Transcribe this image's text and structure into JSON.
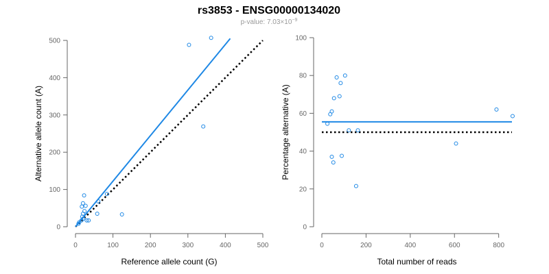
{
  "figure": {
    "title": "rs3853 - ENSG00000134020",
    "subtitle_prefix": "p-value: 7.03×10",
    "subtitle_exponent": "−9"
  },
  "colors": {
    "accent": "#1E88E5",
    "reference_line": "#000000",
    "axis": "#666666"
  },
  "chart_data": [
    {
      "type": "scatter",
      "title": "",
      "xlabel": "Reference allele count (G)",
      "ylabel": "Alternative allele count (A)",
      "xlim": [
        0,
        500
      ],
      "ylim": [
        0,
        500
      ],
      "x_ticks": [
        "0",
        "100",
        "200",
        "300",
        "400",
        "500"
      ],
      "y_ticks": [
        "0",
        "100",
        "200",
        "300",
        "400",
        "500"
      ],
      "grid": false,
      "points": [
        {
          "x": 303,
          "y": 488
        },
        {
          "x": 362,
          "y": 507
        },
        {
          "x": 341,
          "y": 269
        },
        {
          "x": 124,
          "y": 33
        },
        {
          "x": 84,
          "y": 88
        },
        {
          "x": 61,
          "y": 68
        },
        {
          "x": 58,
          "y": 35
        },
        {
          "x": 23,
          "y": 84
        },
        {
          "x": 27,
          "y": 56
        },
        {
          "x": 20,
          "y": 63
        },
        {
          "x": 17,
          "y": 54
        },
        {
          "x": 24,
          "y": 42
        },
        {
          "x": 20,
          "y": 35
        },
        {
          "x": 18,
          "y": 27
        },
        {
          "x": 21,
          "y": 22
        },
        {
          "x": 30,
          "y": 17
        },
        {
          "x": 35,
          "y": 17
        },
        {
          "x": 16,
          "y": 17
        },
        {
          "x": 10,
          "y": 12
        },
        {
          "x": 8,
          "y": 8
        }
      ],
      "fit_line": {
        "x": [
          0,
          413
        ],
        "y": [
          0,
          505
        ]
      },
      "reference_line": {
        "x": [
          0,
          500
        ],
        "y": [
          0,
          500
        ]
      }
    },
    {
      "type": "scatter",
      "title": "",
      "xlabel": "Total number of reads",
      "ylabel": "Percentage alternative (A)",
      "xlim": [
        0,
        860
      ],
      "ylim": [
        0,
        100
      ],
      "x_ticks": [
        "0",
        "200",
        "400",
        "600",
        "800"
      ],
      "y_ticks": [
        "0",
        "20",
        "40",
        "60",
        "80",
        "100"
      ],
      "grid": false,
      "points": [
        {
          "x": 25,
          "y": 54.5
        },
        {
          "x": 38,
          "y": 59.5
        },
        {
          "x": 45,
          "y": 61
        },
        {
          "x": 55,
          "y": 68
        },
        {
          "x": 67,
          "y": 79
        },
        {
          "x": 80,
          "y": 69
        },
        {
          "x": 85,
          "y": 76
        },
        {
          "x": 105,
          "y": 80
        },
        {
          "x": 122,
          "y": 51
        },
        {
          "x": 163,
          "y": 51
        },
        {
          "x": 45,
          "y": 37
        },
        {
          "x": 52,
          "y": 34
        },
        {
          "x": 90,
          "y": 37.5
        },
        {
          "x": 155,
          "y": 21.5
        },
        {
          "x": 607,
          "y": 44
        },
        {
          "x": 790,
          "y": 62
        },
        {
          "x": 863,
          "y": 58.5
        }
      ],
      "fit_line": {
        "x": [
          0,
          860
        ],
        "y": [
          55.5,
          55.5
        ]
      },
      "reference_line": {
        "x": [
          0,
          860
        ],
        "y": [
          50,
          50
        ]
      }
    }
  ]
}
